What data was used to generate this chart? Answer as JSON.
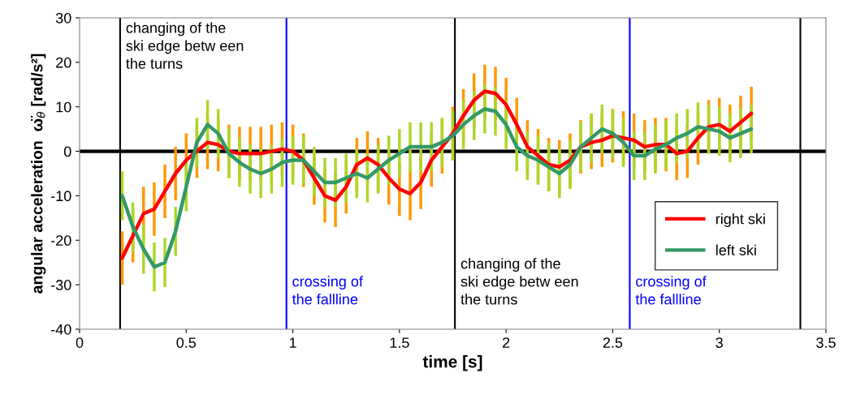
{
  "chart_data": {
    "type": "line",
    "xlabel": "time [s]",
    "ylabel": "angular acceleration  ω̈$_{θ}$ [rad/s²]",
    "x": [
      0.2,
      0.25,
      0.3,
      0.35,
      0.4,
      0.45,
      0.5,
      0.55,
      0.6,
      0.65,
      0.7,
      0.75,
      0.8,
      0.85,
      0.9,
      0.95,
      1.0,
      1.05,
      1.1,
      1.15,
      1.2,
      1.25,
      1.3,
      1.35,
      1.4,
      1.45,
      1.5,
      1.55,
      1.6,
      1.65,
      1.7,
      1.75,
      1.8,
      1.85,
      1.9,
      1.95,
      2.0,
      2.05,
      2.1,
      2.15,
      2.2,
      2.25,
      2.3,
      2.35,
      2.4,
      2.45,
      2.5,
      2.55,
      2.6,
      2.65,
      2.7,
      2.75,
      2.8,
      2.85,
      2.9,
      2.95,
      3.0,
      3.05,
      3.1,
      3.15
    ],
    "series": [
      {
        "name": "right ski",
        "color": "#ff0000",
        "values": [
          -24,
          -19,
          -14,
          -13,
          -9,
          -5,
          -2,
          0,
          2,
          1.5,
          0,
          -0.5,
          -0.5,
          -0.5,
          0,
          0.5,
          0,
          -2,
          -6,
          -10,
          -11,
          -8,
          -3,
          -1.5,
          -3,
          -6,
          -8.5,
          -9.5,
          -7,
          -2,
          1,
          4,
          8,
          11.5,
          13.5,
          13,
          10.5,
          6,
          1,
          -1,
          -3,
          -3.5,
          -2,
          1,
          2,
          2.5,
          3.5,
          3,
          2.5,
          1,
          1.5,
          1.5,
          -0.5,
          0,
          3,
          5.5,
          6,
          4.5,
          6.5,
          8.5
        ],
        "errors": [
          6,
          6,
          6,
          6,
          6,
          6,
          6,
          6,
          6,
          6,
          6,
          6,
          6,
          6,
          6,
          6,
          6,
          6,
          6,
          6,
          6,
          6,
          6,
          6,
          6,
          6,
          6,
          6,
          6,
          6,
          6,
          6,
          6,
          6,
          6,
          6,
          6,
          6,
          6,
          6,
          6,
          6,
          6,
          6,
          6,
          6,
          6,
          6,
          6,
          6,
          6,
          6,
          6,
          6,
          6,
          6,
          6,
          6,
          6,
          6
        ]
      },
      {
        "name": "left ski",
        "color": "#339966",
        "values": [
          -10,
          -17,
          -22,
          -26,
          -25,
          -18,
          -8,
          2,
          6,
          4,
          -0.5,
          -2.5,
          -4,
          -5,
          -4,
          -2.5,
          -2,
          -2,
          -4.5,
          -7,
          -7,
          -6,
          -5,
          -6,
          -4,
          -2,
          -0.5,
          1,
          1,
          1,
          2,
          3.5,
          6,
          8,
          9.5,
          9,
          6,
          1,
          -1,
          -2,
          -3.5,
          -5,
          -3,
          1,
          3,
          5,
          4,
          2,
          -1,
          -1,
          0.5,
          1.5,
          3,
          4,
          5.5,
          5,
          4.5,
          3,
          4,
          5
        ],
        "errors": [
          5.5,
          5.5,
          5.5,
          5.5,
          5.5,
          5.5,
          5.5,
          5.5,
          5.5,
          5.5,
          5.5,
          5.5,
          5.5,
          5.5,
          5.5,
          5.5,
          5.5,
          5.5,
          5.5,
          5.5,
          5.5,
          5.5,
          5.5,
          5.5,
          5.5,
          5.5,
          5.5,
          5.5,
          5.5,
          5.5,
          5.5,
          5.5,
          5.5,
          5.5,
          5.5,
          5.5,
          5.5,
          5.5,
          5.5,
          5.5,
          5.5,
          5.5,
          5.5,
          5.5,
          5.5,
          5.5,
          5.5,
          5.5,
          5.5,
          5.5,
          5.5,
          5.5,
          5.5,
          5.5,
          5.5,
          5.5,
          5.5,
          5.5,
          5.5,
          5.5
        ]
      }
    ],
    "xlim": [
      0,
      3.5
    ],
    "xticks": [
      0,
      0.5,
      1,
      1.5,
      2,
      2.5,
      3,
      3.5
    ],
    "ylim": [
      -40,
      30
    ],
    "yticks": [
      -40,
      -30,
      -20,
      -10,
      0,
      10,
      20,
      30
    ],
    "ref_lines": [
      {
        "axis": "y",
        "value": 0,
        "color": "#000000"
      },
      {
        "axis": "x",
        "value": 0.19,
        "color": "#000000"
      },
      {
        "axis": "x",
        "value": 0.97,
        "color": "#0000ff"
      },
      {
        "axis": "x",
        "value": 1.76,
        "color": "#000000"
      },
      {
        "axis": "x",
        "value": 2.58,
        "color": "#0000ff"
      },
      {
        "axis": "x",
        "value": 3.38,
        "color": "#000000"
      }
    ],
    "annotations": [
      {
        "text": "changing of the\nski edge betw een\nthe turns",
        "x": 0.19,
        "y": 29
      },
      {
        "text": "crossing of\nthe fallline",
        "x": 0.97,
        "y": -28
      },
      {
        "text": "changing of the\nski edge betw een\nthe turns",
        "x": 1.76,
        "y": -24
      },
      {
        "text": "crossing of\nthe fallline",
        "x": 2.58,
        "y": -28
      }
    ],
    "legend": "right",
    "grid": false,
    "marker": "none",
    "line_style": "solid"
  }
}
